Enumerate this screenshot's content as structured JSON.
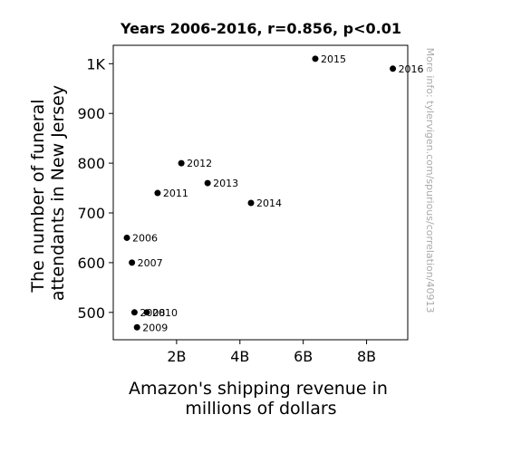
{
  "chart_data": {
    "type": "scatter",
    "title": "Years 2006-2016, r=0.856, p<0.01",
    "xlabel": [
      "Amazon's shipping revenue in",
      "millions of dollars"
    ],
    "ylabel": [
      "The number of funeral",
      "attendants in New Jersey"
    ],
    "xlim": [
      0,
      9.3
    ],
    "ylim": [
      445,
      1037
    ],
    "x_ticks": [
      {
        "value": 2,
        "label": "2B"
      },
      {
        "value": 4,
        "label": "4B"
      },
      {
        "value": 6,
        "label": "6B"
      },
      {
        "value": 8,
        "label": "8B"
      }
    ],
    "y_ticks": [
      {
        "value": 500,
        "label": "500"
      },
      {
        "value": 600,
        "label": "600"
      },
      {
        "value": 700,
        "label": "700"
      },
      {
        "value": 800,
        "label": "800"
      },
      {
        "value": 900,
        "label": "900"
      },
      {
        "value": 1000,
        "label": "1K"
      }
    ],
    "points": [
      {
        "label": "2006",
        "x": 0.43,
        "y": 650
      },
      {
        "label": "2007",
        "x": 0.59,
        "y": 600
      },
      {
        "label": "2008",
        "x": 0.67,
        "y": 500
      },
      {
        "label": "2009",
        "x": 0.75,
        "y": 470
      },
      {
        "label": "2010",
        "x": 1.06,
        "y": 500
      },
      {
        "label": "2011",
        "x": 1.4,
        "y": 740
      },
      {
        "label": "2012",
        "x": 2.15,
        "y": 800
      },
      {
        "label": "2013",
        "x": 2.98,
        "y": 760
      },
      {
        "label": "2014",
        "x": 4.35,
        "y": 720
      },
      {
        "label": "2015",
        "x": 6.38,
        "y": 1010
      },
      {
        "label": "2016",
        "x": 8.83,
        "y": 990
      }
    ],
    "grid": false,
    "legend": "none",
    "point_color": "#000000",
    "watermark": "More info: tylervigen.com/spurious/correlation/40913"
  }
}
